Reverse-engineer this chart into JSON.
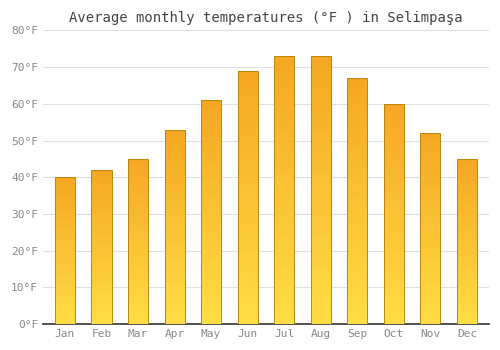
{
  "title": "Average monthly temperatures (°F ) in Selimpaşa",
  "months": [
    "Jan",
    "Feb",
    "Mar",
    "Apr",
    "May",
    "Jun",
    "Jul",
    "Aug",
    "Sep",
    "Oct",
    "Nov",
    "Dec"
  ],
  "values": [
    40,
    42,
    45,
    53,
    61,
    69,
    73,
    73,
    67,
    60,
    52,
    45
  ],
  "ylim": [
    0,
    80
  ],
  "yticks": [
    0,
    10,
    20,
    30,
    40,
    50,
    60,
    70,
    80
  ],
  "ytick_labels": [
    "0°F",
    "10°F",
    "20°F",
    "30°F",
    "40°F",
    "50°F",
    "60°F",
    "70°F",
    "80°F"
  ],
  "bar_color_top": "#F5A623",
  "bar_color_bottom": "#FFDD44",
  "bar_edge_color": "#B8860B",
  "background_color": "#ffffff",
  "plot_bg_color": "#ffffff",
  "grid_color": "#e0e0e0",
  "title_fontsize": 10,
  "tick_fontsize": 8,
  "title_color": "#444444",
  "tick_color": "#888888",
  "bar_width": 0.55
}
